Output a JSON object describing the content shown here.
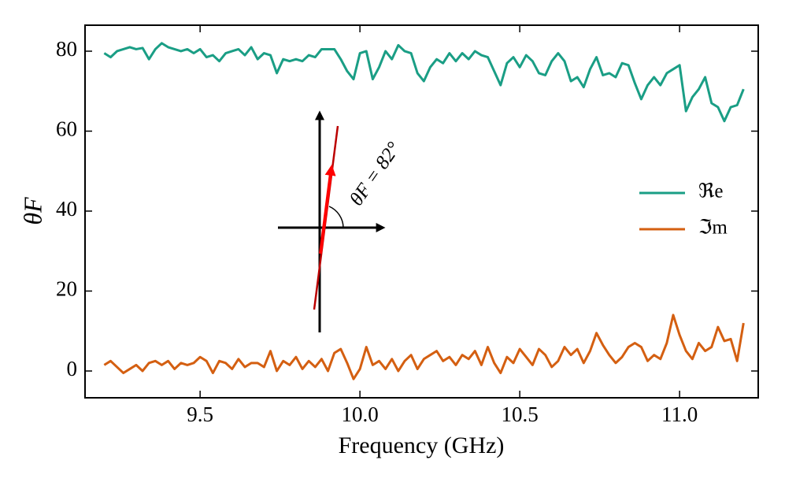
{
  "chart_data": {
    "type": "line",
    "xlabel": "Frequency (GHz)",
    "ylabel": "θF",
    "annotation": "θF = 82°",
    "x": [
      9.2,
      9.22,
      9.24,
      9.26,
      9.28,
      9.3,
      9.32,
      9.34,
      9.36,
      9.38,
      9.4,
      9.42,
      9.44,
      9.46,
      9.48,
      9.5,
      9.52,
      9.54,
      9.56,
      9.58,
      9.6,
      9.62,
      9.64,
      9.66,
      9.68,
      9.7,
      9.72,
      9.74,
      9.76,
      9.78,
      9.8,
      9.82,
      9.84,
      9.86,
      9.88,
      9.9,
      9.92,
      9.94,
      9.96,
      9.98,
      10,
      10.02,
      10.04,
      10.06,
      10.08,
      10.1,
      10.12,
      10.14,
      10.16,
      10.18,
      10.2,
      10.22,
      10.24,
      10.26,
      10.28,
      10.3,
      10.32,
      10.34,
      10.36,
      10.38,
      10.4,
      10.42,
      10.44,
      10.46,
      10.48,
      10.5,
      10.52,
      10.54,
      10.56,
      10.58,
      10.6,
      10.62,
      10.64,
      10.66,
      10.68,
      10.7,
      10.72,
      10.74,
      10.76,
      10.78,
      10.8,
      10.82,
      10.84,
      10.86,
      10.88,
      10.9,
      10.92,
      10.94,
      10.96,
      10.98,
      11,
      11.02,
      11.04,
      11.06,
      11.08,
      11.1,
      11.12,
      11.14,
      11.16,
      11.18,
      11.2
    ],
    "series": [
      {
        "name": "ℜe",
        "color": "#1a9e85",
        "values": [
          79.5,
          78.5,
          80,
          80.5,
          81,
          80.5,
          80.8,
          78,
          80.5,
          82,
          81,
          80.5,
          80,
          80.5,
          79.5,
          80.5,
          78.5,
          79,
          77.5,
          79.5,
          80,
          80.5,
          79,
          81,
          78,
          79.5,
          79,
          74.5,
          78,
          77.5,
          78,
          77.5,
          79,
          78.5,
          80.5,
          80.5,
          80.5,
          78,
          75,
          73,
          79.5,
          80,
          73,
          76,
          80,
          78,
          81.5,
          80,
          79.5,
          74.5,
          72.5,
          76,
          78,
          77,
          79.5,
          77.5,
          79.5,
          78,
          80,
          79,
          78.5,
          75,
          71.5,
          77,
          78.5,
          76,
          79,
          77.5,
          74.5,
          74,
          77.5,
          79.5,
          77.5,
          72.5,
          73.5,
          71,
          75.5,
          78.5,
          74,
          74.5,
          73.5,
          77,
          76.5,
          72,
          68,
          71.5,
          73.5,
          71.5,
          74.5,
          75.5,
          76.5,
          65,
          68.5,
          70.5,
          73.5,
          67,
          66,
          62.5,
          66,
          66.5,
          70.5
        ]
      },
      {
        "name": "ℑm",
        "color": "#d45f11",
        "values": [
          1.5,
          2.5,
          1,
          -0.5,
          0.5,
          1.5,
          0,
          2,
          2.5,
          1.5,
          2.5,
          0.5,
          2,
          1.5,
          2,
          3.5,
          2.5,
          -0.5,
          2.5,
          2,
          0.5,
          3,
          1,
          2,
          2,
          1,
          5,
          0,
          2.5,
          1.5,
          3.5,
          0.5,
          2.5,
          1,
          3,
          0,
          4.5,
          5.5,
          2,
          -2,
          0.5,
          6,
          1.5,
          2.5,
          0.5,
          3,
          0,
          2.5,
          4,
          0.5,
          3,
          4,
          5,
          2.5,
          3.5,
          1.5,
          4,
          3,
          5,
          1.5,
          6,
          2,
          -0.5,
          3.5,
          2,
          5.5,
          3.5,
          1.5,
          5.5,
          4,
          1,
          2.5,
          6,
          4,
          5.5,
          2,
          5,
          9.5,
          6.5,
          4,
          2,
          3.5,
          6,
          7,
          6,
          2.5,
          4,
          3,
          7,
          14,
          9,
          5,
          3,
          7,
          5,
          6,
          11,
          7.5,
          8,
          2.5,
          12
        ]
      }
    ],
    "xlim": [
      9.14,
      11.246
    ],
    "ylim": [
      -6.7,
      86.5
    ],
    "xticks": [
      9.5,
      {
        "value": 10,
        "label": "10.0"
      },
      10.5,
      {
        "value": 11,
        "label": "11.0"
      }
    ],
    "yticks": [
      0,
      20,
      40,
      60,
      80
    ],
    "legend": "right"
  }
}
